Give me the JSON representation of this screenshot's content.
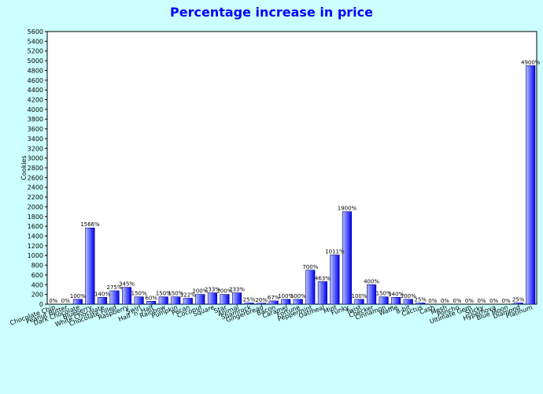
{
  "chart_data": {
    "type": "bar",
    "title": "Percentage increase in price",
    "xlabel": "",
    "ylabel": "Cookies",
    "ylim": [
      0,
      5600
    ],
    "ytick_step": 200,
    "grid": false,
    "categories": [
      "Chocolate Chip",
      "Peanut Butter",
      "Dark Chocolate",
      "Blueberry",
      "White Chocolate",
      "Chocolate Filled",
      "Raspberry",
      "Swirl",
      "Half 'n' Half",
      "Rainbow",
      "Pumpkin",
      "Pecan",
      "Coconut",
      "Square",
      "Star",
      "Animal",
      "Shamrock",
      "Gingerbread",
      "Bacon",
      "Caramel",
      "Fortune",
      "Peppermint",
      "Oatmeal",
      "Mint",
      "Funky",
      "Twist",
      "Checker",
      "Cinnamon",
      "Waffle",
      "8-bit",
      "Cactus",
      "Cash",
      "Mesh",
      "Poncho",
      "Ultimate Gem",
      "Sticky",
      "Hyperhova",
      "Blue Moon",
      "Diamond",
      "Platinum"
    ],
    "values": [
      0,
      0,
      100,
      1566,
      140,
      275,
      345,
      150,
      60,
      150,
      150,
      122,
      200,
      233,
      200,
      233,
      25,
      20,
      67,
      100,
      100,
      700,
      463,
      1011,
      1900,
      100,
      400,
      150,
      140,
      100,
      25,
      0,
      0,
      0,
      0,
      0,
      0,
      0,
      25,
      4900
    ],
    "data_labels": [
      "0%",
      "0%",
      "100%",
      "1566%",
      "140%",
      "275%",
      "345%",
      "150%",
      "60%",
      "150%",
      "150%",
      "122%",
      "200%",
      "233%",
      "200%",
      "233%",
      "25%",
      "20%",
      "67%",
      "100%",
      "100%",
      "700%",
      "463%",
      "1011%",
      "1900%",
      "100%",
      "400%",
      "150%",
      "140%",
      "100%",
      "25%",
      "0%",
      "0%",
      "0%",
      "0%",
      "0%",
      "0%",
      "0%",
      "25%",
      "4900%"
    ],
    "colors": {
      "bar_dark": "#0000ee",
      "bar_light": "#b8c4ff",
      "title": "#0000ff",
      "background": "#ccffff",
      "plot_background": "#ffffff"
    }
  }
}
